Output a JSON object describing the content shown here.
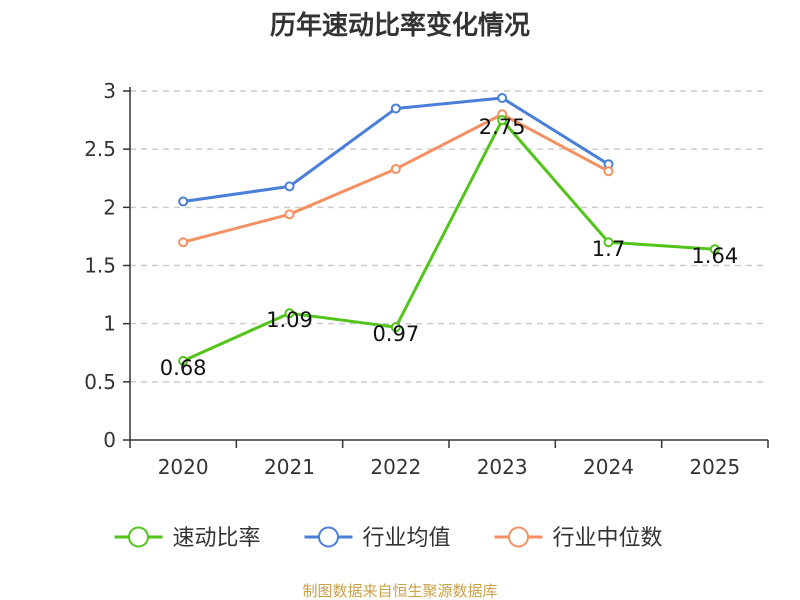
{
  "chart_data": {
    "type": "line",
    "title": "历年速动比率变化情况",
    "categories": [
      "2020",
      "2021",
      "2022",
      "2023",
      "2024",
      "2025"
    ],
    "ylim": [
      0,
      3
    ],
    "yticks": [
      "0",
      "0.5",
      "1",
      "1.5",
      "2",
      "2.5",
      "3"
    ],
    "grid": true,
    "legend_position": "bottom",
    "series": [
      {
        "name": "速动比率",
        "color": "#52c41a",
        "values": [
          0.68,
          1.09,
          0.97,
          2.75,
          1.7,
          1.64
        ],
        "labels": [
          "0.68",
          "1.09",
          "0.97",
          "2.75",
          "1.7",
          "1.64"
        ]
      },
      {
        "name": "行业均值",
        "color": "#4a7fd9",
        "values": [
          2.05,
          2.18,
          2.85,
          2.94,
          2.37,
          null
        ]
      },
      {
        "name": "行业中位数",
        "color": "#f59063",
        "values": [
          1.7,
          1.94,
          2.33,
          2.8,
          2.31,
          null
        ]
      }
    ]
  },
  "source": "制图数据来自恒生聚源数据库"
}
